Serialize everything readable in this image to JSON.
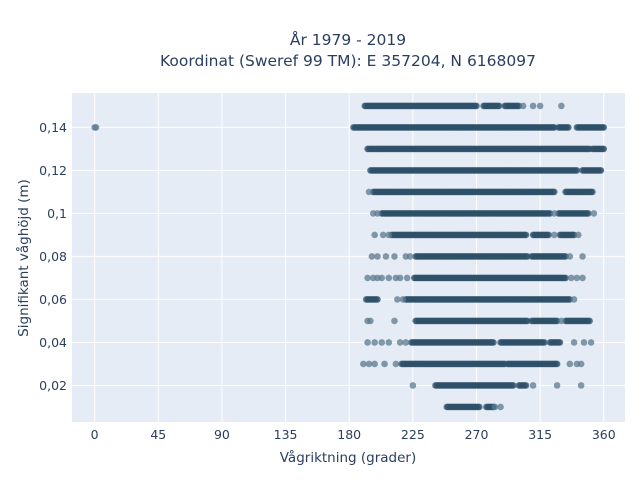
{
  "chart_data": {
    "type": "scatter",
    "title": "År 1979 - 2019",
    "subtitle": "Koordinat (Sweref 99 TM): E 357204, N 6168097",
    "xlabel": "Vågriktning (grader)",
    "ylabel": "Signifikant våghöjd (m)",
    "xlim": [
      -16,
      375
    ],
    "ylim": [
      0.003,
      0.156
    ],
    "x_ticks": [
      0,
      45,
      90,
      135,
      180,
      225,
      270,
      315,
      360
    ],
    "x_tick_labels": [
      "0",
      "45",
      "90",
      "135",
      "180",
      "225",
      "270",
      "315",
      "360"
    ],
    "y_ticks": [
      0.02,
      0.04,
      0.06,
      0.08,
      0.1,
      0.12,
      0.14
    ],
    "y_tick_labels": [
      "0,02",
      "0,04",
      "0,06",
      "0,08",
      "0,1",
      "0,12",
      "0,14"
    ],
    "grid": true,
    "legend": false,
    "colors": {
      "background": "#e5ecf6",
      "grid": "#ffffff",
      "marker": "#2e5068",
      "marker_light": "#5b7a8e",
      "text": "#2a3f5f"
    },
    "series": [
      {
        "points_by_height": [
          {
            "y": 0.01,
            "segments": [
              [
                249,
                272
              ],
              [
                277,
                282
              ]
            ],
            "isolated": [
              283,
              287
            ]
          },
          {
            "y": 0.02,
            "segments": [
              [
                241,
                296
              ],
              [
                300,
                305
              ]
            ],
            "isolated": [
              225,
              310,
              327,
              344
            ]
          },
          {
            "y": 0.03,
            "segments": [
              [
                217,
                290
              ],
              [
                292,
                322
              ],
              [
                323,
                327
              ]
            ],
            "isolated": [
              190,
              194,
              198,
              205,
              213,
              336,
              341,
              344
            ]
          },
          {
            "y": 0.04,
            "segments": [
              [
                224,
                282
              ],
              [
                287,
                318
              ],
              [
                322,
                329
              ]
            ],
            "isolated": [
              193,
              198,
              203,
              208,
              216,
              220,
              339,
              346,
              351
            ]
          },
          {
            "y": 0.05,
            "segments": [
              [
                227,
                306
              ],
              [
                309,
                327
              ],
              [
                333,
                350
              ]
            ],
            "isolated": [
              193,
              195,
              212,
              330
            ]
          },
          {
            "y": 0.06,
            "segments": [
              [
                220,
                336
              ],
              [
                192,
                200
              ]
            ],
            "isolated": [
              214,
              218,
              339
            ]
          },
          {
            "y": 0.07,
            "segments": [
              [
                226,
                333
              ]
            ],
            "isolated": [
              193,
              197,
              200,
              203,
              208,
              213,
              216,
              221,
              337,
              341,
              345
            ]
          },
          {
            "y": 0.08,
            "segments": [
              [
                227,
                306
              ],
              [
                309,
                333
              ]
            ],
            "isolated": [
              196,
              200,
              206,
              212,
              220,
              223,
              336,
              345
            ]
          },
          {
            "y": 0.09,
            "segments": [
              [
                210,
                305
              ],
              [
                310,
                321
              ],
              [
                329,
                339
              ]
            ],
            "isolated": [
              198,
              204,
              208,
              325,
              342
            ]
          },
          {
            "y": 0.1,
            "segments": [
              [
                203,
                322
              ],
              [
                328,
                349
              ]
            ],
            "isolated": [
              197,
              200,
              325,
              353
            ]
          },
          {
            "y": 0.11,
            "segments": [
              [
                197,
                325
              ],
              [
                333,
                352
              ]
            ],
            "isolated": [
              194
            ]
          },
          {
            "y": 0.12,
            "segments": [
              [
                195,
                341
              ],
              [
                345,
                358
              ]
            ],
            "isolated": []
          },
          {
            "y": 0.13,
            "segments": [
              [
                193,
                350
              ],
              [
                352,
                360
              ]
            ],
            "isolated": []
          },
          {
            "y": 0.14,
            "segments": [
              [
                183,
                325
              ],
              [
                328,
                335
              ],
              [
                341,
                360
              ]
            ],
            "isolated": [
              0,
              1
            ]
          },
          {
            "y": 0.15,
            "segments": [
              [
                191,
                270
              ],
              [
                275,
                286
              ],
              [
                290,
                300
              ]
            ],
            "isolated": [
              303,
              310,
              315,
              330
            ]
          }
        ]
      }
    ]
  }
}
